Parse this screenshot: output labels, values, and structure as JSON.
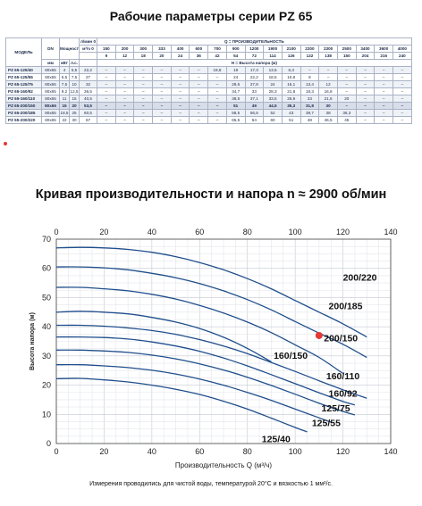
{
  "title1": "Рабочие параметры серии PZ 65",
  "title2": "Кривая производительности и напора n ≈ 2900 об/мин",
  "footnote": "Измерения проводились для чистой воды, температурой 20°C и вязкостью 1 мм²/с.",
  "table": {
    "header_q_title": "Q = ПРОИЗВОДИТЕЛЬНОСТЬ",
    "header_h_title": "H = Высота напора (м)",
    "col_model": "МОДЕЛЬ",
    "col_dn": "DN",
    "col_power": "Мощность",
    "unit_dn": "мм",
    "unit_kw": "кВт",
    "unit_hp": "л.с.",
    "unit_lmin": "л/мин 0",
    "unit_m3h": "м³/ч 0",
    "q_lmin": [
      "150",
      "200",
      "300",
      "333",
      "400",
      "600",
      "700",
      "900",
      "1200",
      "1900",
      "2100",
      "2200",
      "2300",
      "2500",
      "3400",
      "3600",
      "4000"
    ],
    "q_m3h": [
      "9",
      "12",
      "18",
      "20",
      "24",
      "36",
      "42",
      "54",
      "72",
      "114",
      "126",
      "132",
      "138",
      "150",
      "204",
      "216",
      "240"
    ],
    "rows": [
      {
        "model": "PZ 65-125/40",
        "dn": "80x65",
        "kw": "4",
        "hp": "5,5",
        "h0": "22,2",
        "vals": [
          "–",
          "–",
          "–",
          "–",
          "–",
          "–",
          "19,8",
          "19",
          "17,3",
          "13,5",
          "6,3",
          "–",
          "–",
          "–",
          "–",
          "–",
          "–"
        ]
      },
      {
        "model": "PZ 65-125/55",
        "dn": "80x65",
        "kw": "5,5",
        "hp": "7,5",
        "h0": "27",
        "vals": [
          "–",
          "–",
          "–",
          "–",
          "–",
          "–",
          "–",
          "24",
          "22,2",
          "18,5",
          "10,8",
          "8",
          "–",
          "–",
          "–",
          "–",
          "–"
        ]
      },
      {
        "model": "PZ 65-125/75",
        "dn": "80x65",
        "kw": "7,5",
        "hp": "10",
        "h0": "32",
        "vals": [
          "–",
          "–",
          "–",
          "–",
          "–",
          "–",
          "–",
          "29,5",
          "27,8",
          "24",
          "16,1",
          "13,4",
          "12",
          "–",
          "–",
          "–",
          "–"
        ]
      },
      {
        "model": "PZ 65-160/92",
        "dn": "80x65",
        "kw": "9,2",
        "hp": "12,5",
        "h0": "36,5",
        "vals": [
          "–",
          "–",
          "–",
          "–",
          "–",
          "–",
          "–",
          "34,7",
          "33",
          "28,3",
          "21,8",
          "18,3",
          "16,8",
          "–",
          "–",
          "–",
          "–"
        ]
      },
      {
        "model": "PZ 65-160/110",
        "dn": "80x65",
        "kw": "11",
        "hp": "15",
        "h0": "40,5",
        "vals": [
          "–",
          "–",
          "–",
          "–",
          "–",
          "–",
          "–",
          "38,5",
          "37,1",
          "33,5",
          "25,9",
          "23",
          "21,5",
          "20",
          "–",
          "–",
          "–"
        ]
      },
      {
        "model": "PZ 65-200/150",
        "dn": "80x65",
        "kw": "15",
        "hp": "20",
        "h0": "53,5",
        "vals": [
          "–",
          "–",
          "–",
          "–",
          "–",
          "–",
          "–",
          "51",
          "49",
          "44,5",
          "35,3",
          "31,8",
          "30",
          "–",
          "–",
          "–",
          "–"
        ]
      },
      {
        "model": "PZ 65-200/185",
        "dn": "80x65",
        "kw": "18,5",
        "hp": "25",
        "h0": "60,5",
        "vals": [
          "–",
          "–",
          "–",
          "–",
          "–",
          "–",
          "–",
          "58,5",
          "56,5",
          "52",
          "43",
          "39,7",
          "38",
          "36,3",
          "–",
          "–",
          "–"
        ]
      },
      {
        "model": "PZ 65-200/220",
        "dn": "80x65",
        "kw": "22",
        "hp": "30",
        "h0": "67",
        "vals": [
          "–",
          "–",
          "–",
          "–",
          "–",
          "–",
          "–",
          "65,5",
          "64",
          "60",
          "51",
          "48",
          "46,5",
          "45",
          "–",
          "–",
          "–"
        ]
      }
    ]
  },
  "chart_data": {
    "type": "line",
    "xlabel": "Производительность Q (м³/ч)",
    "ylabel": "Высота напора (м)",
    "xlim": [
      0,
      140
    ],
    "ylim": [
      0,
      70
    ],
    "xticks": [
      "0",
      "20",
      "40",
      "60",
      "80",
      "100",
      "120",
      "140"
    ],
    "yticks": [
      "0",
      "10",
      "20",
      "30",
      "40",
      "50",
      "60",
      "70"
    ],
    "grid": true,
    "line_color": "#1f4e8c",
    "marker": {
      "x": 110,
      "y": 37,
      "color": "#e53935"
    },
    "series": [
      {
        "name": "200/220",
        "x": [
          0,
          10,
          20,
          30,
          40,
          50,
          60,
          70,
          80,
          90,
          100,
          110,
          120,
          130
        ],
        "y": [
          67,
          67.2,
          67,
          66.5,
          65.5,
          64,
          62,
          59.5,
          56.5,
          53,
          49,
          45,
          41,
          36.5
        ]
      },
      {
        "name": "200/185",
        "x": [
          0,
          10,
          20,
          30,
          40,
          50,
          60,
          70,
          80,
          90,
          100,
          110,
          120,
          130
        ],
        "y": [
          60.5,
          60.5,
          60.2,
          59.5,
          58.3,
          56.8,
          54.8,
          52.3,
          49.3,
          45.8,
          41.8,
          37.8,
          34,
          29.5
        ]
      },
      {
        "name": "200/150",
        "x": [
          0,
          10,
          20,
          30,
          40,
          50,
          60,
          70,
          80,
          90,
          100,
          110,
          120
        ],
        "y": [
          53.5,
          53.5,
          53,
          52.3,
          51.1,
          49.5,
          47.3,
          44.7,
          41.6,
          38,
          33.8,
          29.5,
          24
        ]
      },
      {
        "name": "160/150",
        "x": [
          0,
          10,
          20,
          30,
          40,
          50,
          60,
          70,
          80,
          90
        ],
        "y": [
          45,
          45.3,
          45,
          44.4,
          43.2,
          41.6,
          39.4,
          36.4,
          32.6,
          28
        ]
      },
      {
        "name": "160/110",
        "x": [
          0,
          10,
          20,
          30,
          40,
          50,
          60,
          70,
          80,
          90,
          100,
          110,
          120,
          130
        ],
        "y": [
          40.5,
          40.5,
          40.2,
          39.6,
          38.7,
          37.4,
          35.6,
          33.4,
          30.8,
          27.8,
          24.7,
          21.5,
          18.4,
          15.5
        ]
      },
      {
        "name": "160/92",
        "x": [
          0,
          10,
          20,
          30,
          40,
          50,
          60,
          70,
          80,
          90,
          100,
          110,
          120,
          125
        ],
        "y": [
          36.5,
          36.5,
          36.3,
          35.8,
          34.8,
          33.4,
          31.6,
          29.3,
          26.6,
          23.6,
          20.5,
          17.4,
          14.4,
          13.2
        ]
      },
      {
        "name": "125/75",
        "x": [
          0,
          10,
          20,
          30,
          40,
          50,
          60,
          70,
          80,
          90,
          100,
          110,
          120,
          125
        ],
        "y": [
          32,
          32,
          31.7,
          31.2,
          30.3,
          29,
          27.3,
          25.2,
          22.7,
          19.9,
          16.9,
          13.8,
          11,
          9.8
        ]
      },
      {
        "name": "125/55",
        "x": [
          0,
          10,
          20,
          30,
          40,
          50,
          60,
          70,
          80,
          90,
          100,
          110,
          115
        ],
        "y": [
          27,
          27,
          26.6,
          26,
          25.1,
          23.8,
          22.1,
          20,
          17.5,
          14.8,
          11.8,
          8.8,
          7.3
        ]
      },
      {
        "name": "125/40",
        "x": [
          0,
          10,
          20,
          30,
          40,
          50,
          60,
          70,
          80,
          90,
          100,
          105
        ],
        "y": [
          22.2,
          22.3,
          21.8,
          21.1,
          20,
          18.6,
          16.8,
          14.5,
          11.8,
          8.7,
          5.5,
          4
        ]
      }
    ],
    "labels": [
      {
        "text": "200/220",
        "x": 120,
        "y": 57
      },
      {
        "text": "200/185",
        "x": 114,
        "y": 47.2
      },
      {
        "text": "200/150",
        "x": 112,
        "y": 36.2
      },
      {
        "text": "160/150",
        "x": 91,
        "y": 30.2
      },
      {
        "text": "160/110",
        "x": 113,
        "y": 23.2
      },
      {
        "text": "160/92",
        "x": 114,
        "y": 17.2
      },
      {
        "text": "125/75",
        "x": 111,
        "y": 12.3
      },
      {
        "text": "125/55",
        "x": 107,
        "y": 7.2
      },
      {
        "text": "125/40",
        "x": 86,
        "y": 1.7
      }
    ]
  }
}
